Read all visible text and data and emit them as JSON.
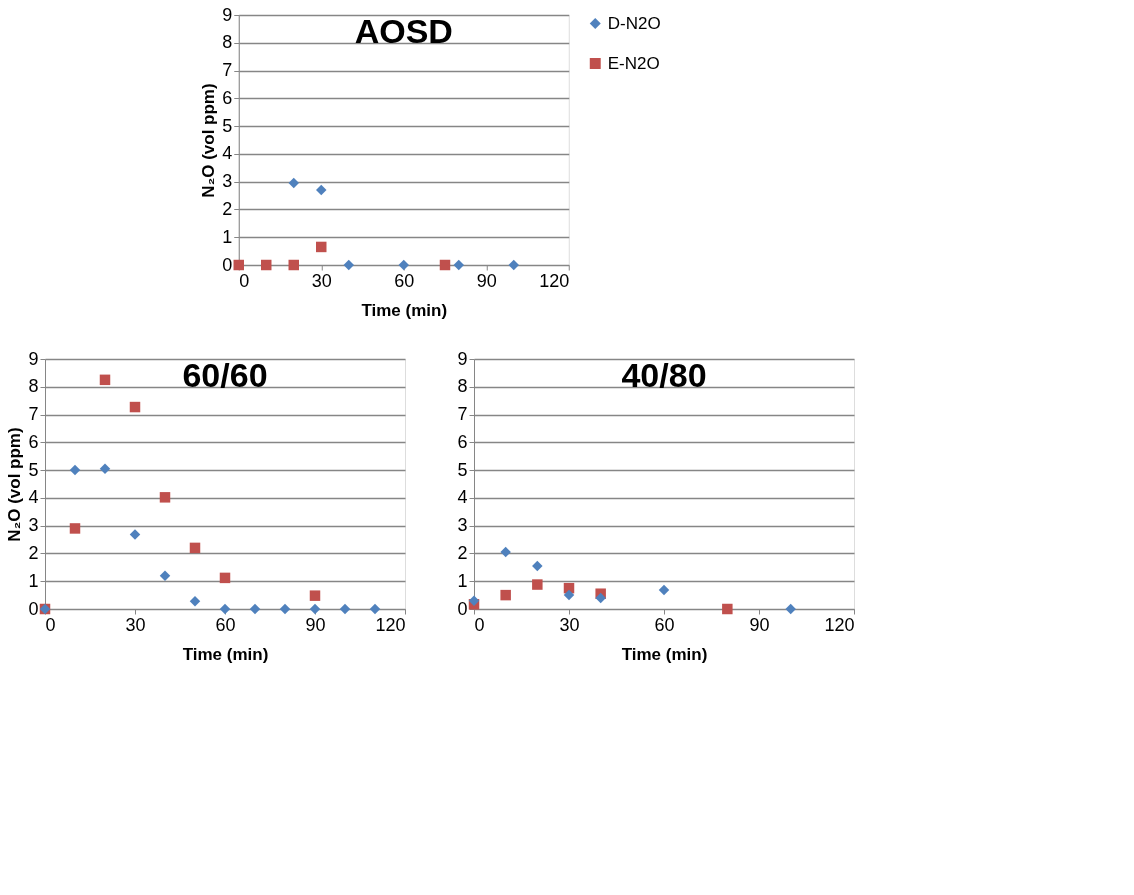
{
  "chart_data": [
    {
      "type": "scatter",
      "title": "AOSD",
      "xlabel": "Time (min)",
      "ylabel": "N₂O (vol ppm)",
      "xlim": [
        0,
        120
      ],
      "xticks": [
        0,
        30,
        60,
        90,
        120
      ],
      "ylim": [
        0,
        9
      ],
      "yticks": [
        0,
        1,
        2,
        3,
        4,
        5,
        6,
        7,
        8,
        9
      ],
      "grid": "y",
      "legend": "right",
      "series": [
        {
          "name": "D-N2O",
          "color": "#4f81bd",
          "marker": "diamond",
          "x": [
            20,
            30,
            40,
            60,
            80,
            100
          ],
          "values": [
            2.95,
            2.7,
            0,
            0,
            0,
            0
          ]
        },
        {
          "name": "E-N2O",
          "color": "#c0504d",
          "marker": "square",
          "x": [
            0,
            10,
            20,
            30,
            75
          ],
          "values": [
            0,
            0,
            0,
            0.65,
            0
          ]
        }
      ]
    },
    {
      "type": "scatter",
      "title": "60/60",
      "xlabel": "Time (min)",
      "ylabel": "N₂O (vol ppm)",
      "xlim": [
        0,
        120
      ],
      "xticks": [
        0,
        30,
        60,
        90,
        120
      ],
      "ylim": [
        0,
        9
      ],
      "yticks": [
        0,
        1,
        2,
        3,
        4,
        5,
        6,
        7,
        8,
        9
      ],
      "grid": "y",
      "series": [
        {
          "color": "#4f81bd",
          "marker": "diamond",
          "x": [
            0,
            10,
            20,
            30,
            40,
            50,
            60,
            70,
            80,
            90,
            100,
            110
          ],
          "values": [
            0,
            5,
            5.05,
            2.68,
            1.2,
            0.28,
            0,
            0,
            0,
            0,
            0,
            0
          ]
        },
        {
          "color": "#c0504d",
          "marker": "square",
          "x": [
            0,
            10,
            20,
            30,
            40,
            50,
            60,
            90
          ],
          "values": [
            0,
            2.9,
            8.25,
            7.27,
            4.02,
            2.2,
            1.12,
            0.48
          ]
        }
      ]
    },
    {
      "type": "scatter",
      "title": "40/80",
      "xlabel": "Time (min)",
      "xlim": [
        0,
        120
      ],
      "xticks": [
        0,
        30,
        60,
        90,
        120
      ],
      "ylim": [
        0,
        9
      ],
      "yticks": [
        0,
        1,
        2,
        3,
        4,
        5,
        6,
        7,
        8,
        9
      ],
      "grid": "y",
      "series": [
        {
          "color": "#4f81bd",
          "marker": "diamond",
          "x": [
            0,
            10,
            20,
            30,
            40,
            60,
            100
          ],
          "values": [
            0.3,
            2.05,
            1.55,
            0.5,
            0.4,
            0.68,
            0
          ]
        },
        {
          "color": "#c0504d",
          "marker": "square",
          "x": [
            0,
            10,
            20,
            30,
            40,
            80
          ],
          "values": [
            0.17,
            0.5,
            0.88,
            0.75,
            0.55,
            0
          ]
        }
      ]
    }
  ]
}
